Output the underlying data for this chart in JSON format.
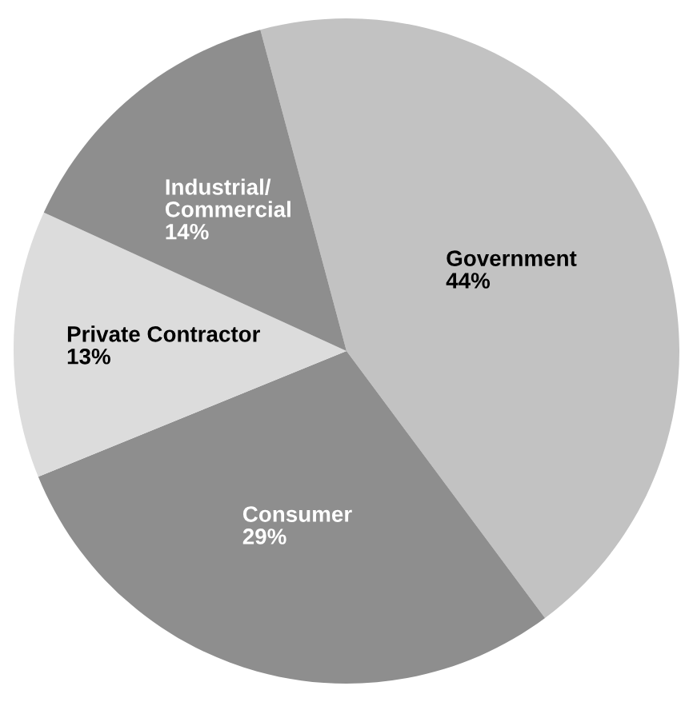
{
  "chart_data": {
    "type": "pie",
    "categories": [
      "Government",
      "Consumer",
      "Private Contractor",
      "Industrial/\nCommercial"
    ],
    "values": [
      44,
      29,
      13,
      14
    ],
    "value_labels": [
      "44%",
      "29%",
      "13%",
      "14%"
    ],
    "colors": [
      "#c2c2c2",
      "#8e8e8e",
      "#dcdcdc",
      "#8e8e8e"
    ]
  }
}
